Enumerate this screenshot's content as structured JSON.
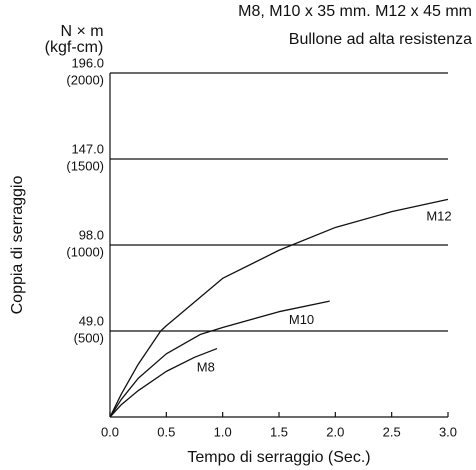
{
  "chart_data": {
    "type": "line",
    "title": "M8, M10 x 35 mm. M12 x 45 mm",
    "subtitle": "Bullone ad alta resistenza",
    "y_unit": "N × m",
    "y2_unit": "(kgf-cm)",
    "y_label": "Coppia di serraggio",
    "x_label": "Tempo di serraggio (Sec.)",
    "xlim": [
      0,
      3
    ],
    "xticks": [
      {
        "value": 0,
        "label": "0.0"
      },
      {
        "value": 0.5,
        "label": "0.5"
      },
      {
        "value": 1,
        "label": "1.0"
      },
      {
        "value": 1.5,
        "label": "1.5"
      },
      {
        "value": 2,
        "label": "2.0"
      },
      {
        "value": 2.5,
        "label": "2.5"
      },
      {
        "value": 3,
        "label": "3.0"
      }
    ],
    "ylim": [
      0,
      196
    ],
    "yticks": [
      {
        "value": 49,
        "label": "49.0"
      },
      {
        "value": 98,
        "label": "98.0"
      },
      {
        "value": 147,
        "label": "147.0"
      },
      {
        "value": 196,
        "label": "196.0"
      }
    ],
    "y2lim": [
      0,
      2000
    ],
    "y2ticks": [
      {
        "value": 500,
        "label": "(500)"
      },
      {
        "value": 1000,
        "label": "(1000)"
      },
      {
        "value": 1500,
        "label": "(1500)"
      },
      {
        "value": 2000,
        "label": "(2000)"
      }
    ],
    "grid": true,
    "color": "#111111",
    "series": [
      {
        "name": "M8",
        "color": "#111111",
        "x": [
          0,
          0.1,
          0.25,
          0.5,
          0.75,
          0.95
        ],
        "values": [
          0,
          7,
          15,
          26,
          34,
          39
        ]
      },
      {
        "name": "M10",
        "color": "#111111",
        "x": [
          0,
          0.1,
          0.25,
          0.5,
          0.8,
          1,
          1.5,
          1.95
        ],
        "values": [
          0,
          10,
          22,
          36,
          47,
          51,
          60,
          66
        ]
      },
      {
        "name": "M12",
        "color": "#111111",
        "x": [
          0,
          0.1,
          0.25,
          0.45,
          0.5,
          1,
          1.5,
          2,
          2.5,
          3
        ],
        "values": [
          0,
          13,
          30,
          49,
          52,
          79,
          95,
          108,
          117,
          124
        ]
      }
    ]
  }
}
